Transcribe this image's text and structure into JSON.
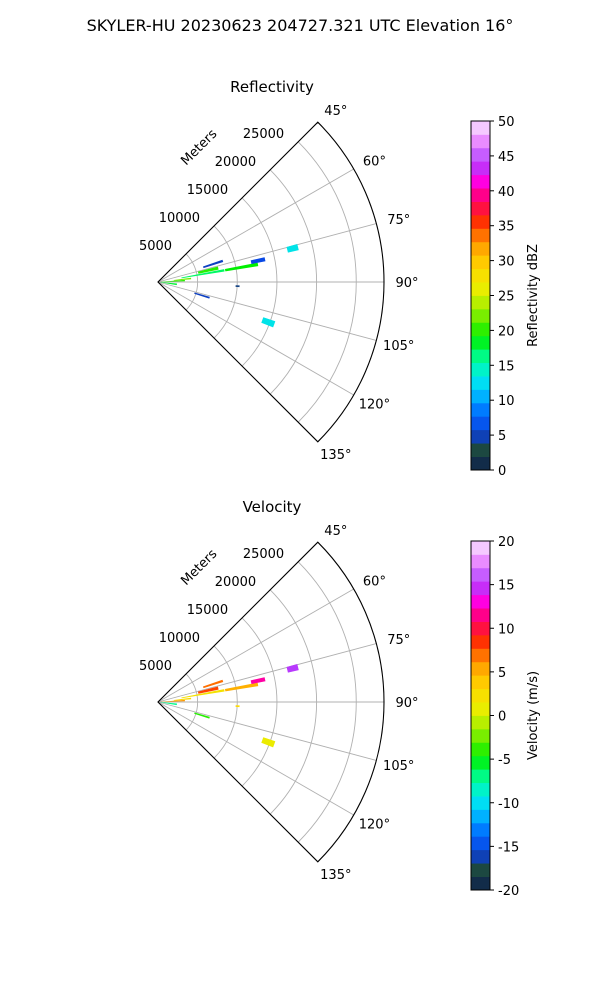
{
  "figure": {
    "suptitle": "SKYLER-HU  20230623  204727.321 UTC Elevation 16°"
  },
  "chart_data": [
    {
      "type": "polar-sector",
      "title": "Reflectivity",
      "theta_range_deg": [
        45,
        135
      ],
      "theta_ticks": [
        "45°",
        "60°",
        "75°",
        "90°",
        "105°",
        "120°",
        "135°"
      ],
      "radial_label": "Meters",
      "radial_ticks": [
        "5000",
        "10000",
        "15000",
        "20000",
        "25000"
      ],
      "colorbar": {
        "label": "Reflectivity dBZ",
        "min": 0,
        "max": 50,
        "ticks": [
          "0",
          "5",
          "10",
          "15",
          "20",
          "25",
          "30",
          "35",
          "40",
          "45",
          "50"
        ]
      },
      "echo_cells": [
        {
          "az": 87,
          "r0": 400,
          "r1": 3400,
          "w": 3.0,
          "value": 20
        },
        {
          "az": 84,
          "r0": 2000,
          "r1": 4200,
          "w": 2.5,
          "value": 22
        },
        {
          "az": 80,
          "r0": 3000,
          "r1": 8500,
          "w": 2.0,
          "value": 17
        },
        {
          "az": 77,
          "r0": 5200,
          "r1": 7800,
          "w": 3.0,
          "value": 20
        },
        {
          "az": 72,
          "r0": 6000,
          "r1": 8600,
          "w": 2.0,
          "value": 5
        },
        {
          "az": 80,
          "r0": 8600,
          "r1": 12800,
          "w": 2.0,
          "value": 19
        },
        {
          "az": 78,
          "r0": 12000,
          "r1": 13800,
          "w": 2.2,
          "value": 6
        },
        {
          "az": 76,
          "r0": 16800,
          "r1": 18200,
          "w": 2.5,
          "value": 13
        },
        {
          "az": 97,
          "r0": 300,
          "r1": 2400,
          "w": 5.0,
          "value": 18
        },
        {
          "az": 107,
          "r0": 4800,
          "r1": 6800,
          "w": 2.0,
          "value": 5
        },
        {
          "az": 93,
          "r0": 9800,
          "r1": 10300,
          "w": 1.2,
          "value": 4
        },
        {
          "az": 110,
          "r0": 14000,
          "r1": 15600,
          "w": 3.0,
          "value": 13
        }
      ]
    },
    {
      "type": "polar-sector",
      "title": "Velocity",
      "theta_range_deg": [
        45,
        135
      ],
      "theta_ticks": [
        "45°",
        "60°",
        "75°",
        "90°",
        "105°",
        "120°",
        "135°"
      ],
      "radial_label": "Meters",
      "radial_ticks": [
        "5000",
        "10000",
        "15000",
        "20000",
        "25000"
      ],
      "colorbar": {
        "label": "Velocity (m/s)",
        "min": -20,
        "max": 20,
        "ticks": [
          "-20",
          "-15",
          "-10",
          "-5",
          "0",
          "5",
          "10",
          "15",
          "20"
        ]
      },
      "echo_cells": [
        {
          "az": 87,
          "r0": 400,
          "r1": 3400,
          "w": 3.0,
          "value": 6
        },
        {
          "az": 84,
          "r0": 2000,
          "r1": 4200,
          "w": 2.5,
          "value": 3
        },
        {
          "az": 80,
          "r0": 3000,
          "r1": 8500,
          "w": 2.0,
          "value": 2
        },
        {
          "az": 77,
          "r0": 5200,
          "r1": 7800,
          "w": 3.0,
          "value": 8
        },
        {
          "az": 72,
          "r0": 6000,
          "r1": 8600,
          "w": 2.0,
          "value": 7
        },
        {
          "az": 80,
          "r0": 8600,
          "r1": 12800,
          "w": 2.0,
          "value": 5
        },
        {
          "az": 78,
          "r0": 12000,
          "r1": 13800,
          "w": 2.2,
          "value": 12
        },
        {
          "az": 76,
          "r0": 16800,
          "r1": 18200,
          "w": 2.5,
          "value": 15
        },
        {
          "az": 97,
          "r0": 300,
          "r1": 2400,
          "w": 5.0,
          "value": -7
        },
        {
          "az": 107,
          "r0": 4800,
          "r1": 6800,
          "w": 2.0,
          "value": -4
        },
        {
          "az": 93,
          "r0": 9800,
          "r1": 10300,
          "w": 1.2,
          "value": 3
        },
        {
          "az": 110,
          "r0": 14000,
          "r1": 15600,
          "w": 3.0,
          "value": 1
        }
      ]
    }
  ]
}
